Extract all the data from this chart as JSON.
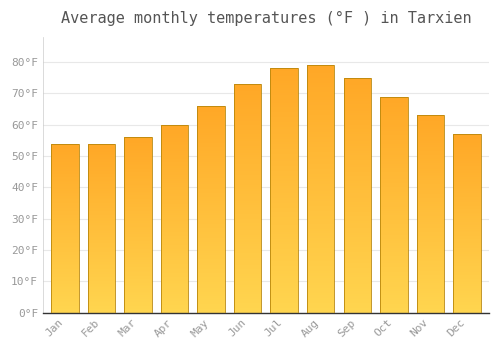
{
  "title": "Average monthly temperatures (°F ) in Tarxien",
  "months": [
    "Jan",
    "Feb",
    "Mar",
    "Apr",
    "May",
    "Jun",
    "Jul",
    "Aug",
    "Sep",
    "Oct",
    "Nov",
    "Dec"
  ],
  "values": [
    54,
    54,
    56,
    60,
    66,
    73,
    78,
    79,
    75,
    69,
    63,
    57
  ],
  "bar_color_main": "#FFA726",
  "bar_color_light": "#FFD54F",
  "bar_edge_color": "#B8860B",
  "background_color": "#FFFFFF",
  "plot_bg_color": "#FFFFFF",
  "grid_color": "#E8E8E8",
  "tick_label_color": "#999999",
  "title_color": "#555555",
  "ylim": [
    0,
    88
  ],
  "yticks": [
    0,
    10,
    20,
    30,
    40,
    50,
    60,
    70,
    80
  ],
  "ytick_labels": [
    "0°F",
    "10°F",
    "20°F",
    "30°F",
    "40°F",
    "50°F",
    "60°F",
    "70°F",
    "80°F"
  ],
  "title_fontsize": 11,
  "tick_fontsize": 8
}
